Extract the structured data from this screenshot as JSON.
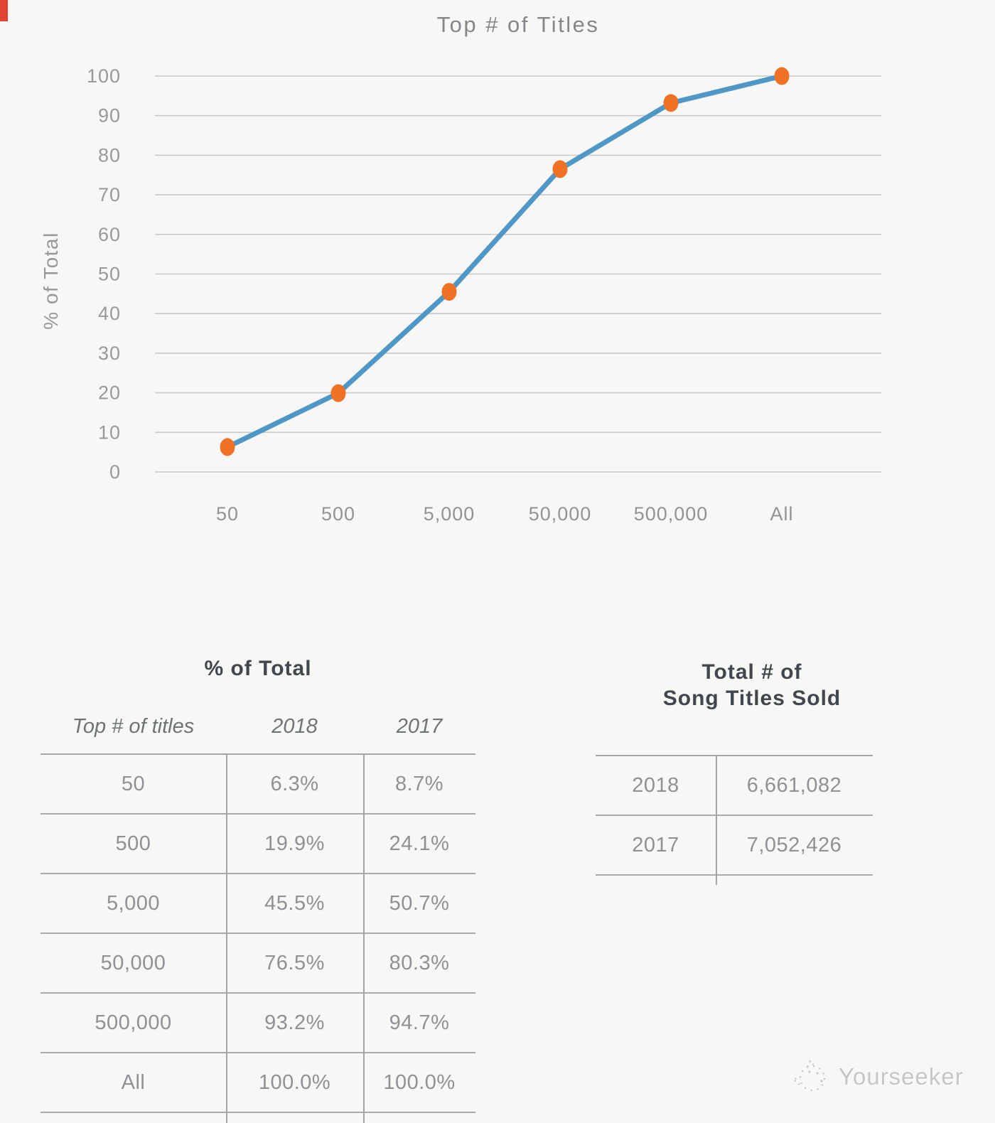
{
  "page": {
    "corner_artifact_color": "#e04432"
  },
  "chart_data": {
    "type": "line",
    "title": "Top # of Titles",
    "xlabel": "",
    "ylabel": "% of Total",
    "categories": [
      "50",
      "500",
      "5,000",
      "50,000",
      "500,000",
      "All"
    ],
    "series": [
      {
        "name": "2018",
        "values": [
          6.3,
          19.9,
          45.5,
          76.5,
          93.2,
          100.0
        ]
      }
    ],
    "ylim": [
      0,
      100
    ],
    "ytick_step": 10,
    "grid": "horizontal",
    "legend": "none",
    "line_color": "#4f97c6",
    "marker_color": "#ee7125",
    "grid_color": "#c9c9c8"
  },
  "tables": {
    "percent_of_total": {
      "title": "% of Total",
      "headers": [
        "Top # of titles",
        "2018",
        "2017"
      ],
      "rows": [
        [
          "50",
          "6.3%",
          "8.7%"
        ],
        [
          "500",
          "19.9%",
          "24.1%"
        ],
        [
          "5,000",
          "45.5%",
          "50.7%"
        ],
        [
          "50,000",
          "76.5%",
          "80.3%"
        ],
        [
          "500,000",
          "93.2%",
          "94.7%"
        ],
        [
          "All",
          "100.0%",
          "100.0%"
        ]
      ]
    },
    "titles_sold": {
      "title_line1": "Total # of",
      "title_line2": "Song Titles Sold",
      "rows": [
        [
          "2018",
          "6,661,082"
        ],
        [
          "2017",
          "7,052,426"
        ]
      ]
    }
  },
  "watermark": {
    "text": "Yourseeker"
  }
}
